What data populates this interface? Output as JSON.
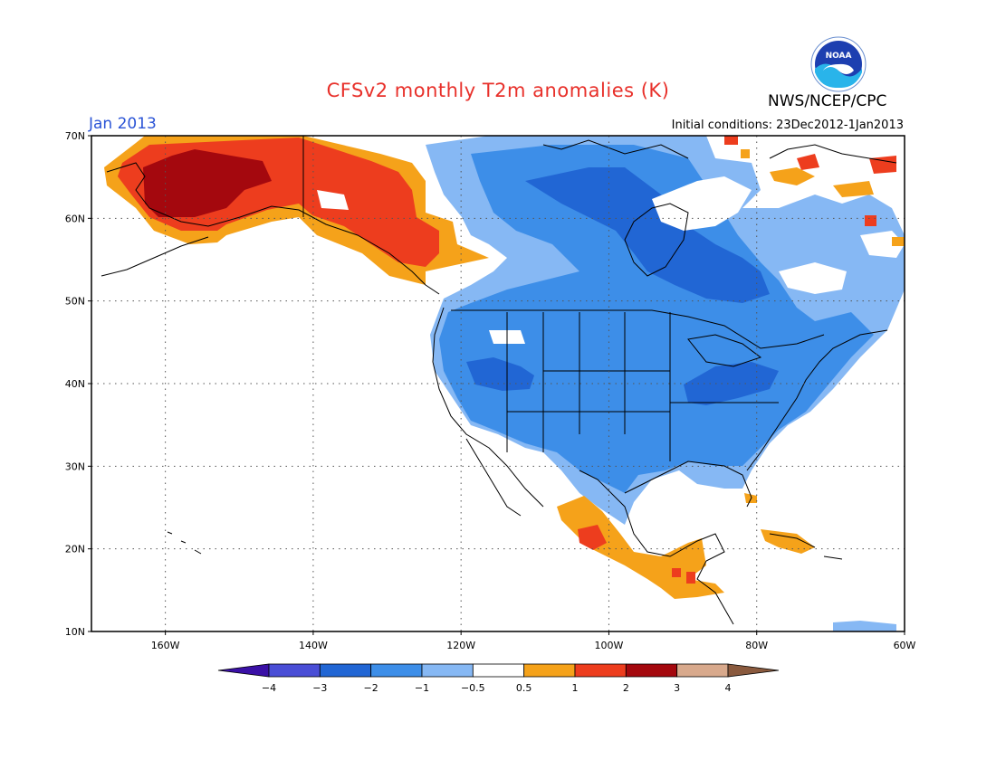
{
  "header": {
    "title": "CFSv2 monthly T2m anomalies (K)",
    "agency": "NWS/NCEP/CPC",
    "logo_text": "NOAA",
    "period": "Jan 2013",
    "initial_conditions": "Initial conditions: 23Dec2012-1Jan2013"
  },
  "map": {
    "lat_labels": [
      "70N",
      "60N",
      "50N",
      "40N",
      "30N",
      "20N",
      "10N"
    ],
    "lon_labels": [
      "160W",
      "140W",
      "120W",
      "100W",
      "80W",
      "60W"
    ],
    "lon_range": [
      -170,
      -60
    ],
    "lat_range": [
      10,
      70
    ],
    "grid": true
  },
  "legend": {
    "colors": [
      "#3a10a6",
      "#4a4ed6",
      "#2166d4",
      "#3d8ee8",
      "#86b8f4",
      "#ffffff",
      "#f5a21a",
      "#ed3d1e",
      "#a4080e",
      "#d8a98c",
      "#8a5a3e"
    ],
    "labels": [
      "−4",
      "−3",
      "−2",
      "−1",
      "−0.5",
      "0.5",
      "1",
      "2",
      "3",
      "4"
    ]
  }
}
